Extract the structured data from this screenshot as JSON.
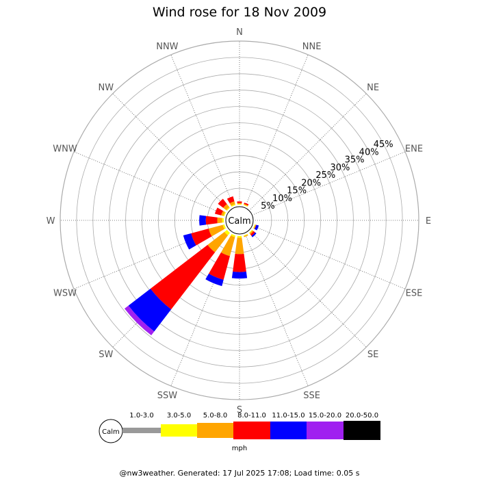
{
  "chart_data": {
    "type": "wind_rose",
    "title": "Wind rose for 18 Nov 2009",
    "unit": "mph",
    "calm_label": "Calm",
    "directions": [
      "N",
      "NNE",
      "NE",
      "ENE",
      "E",
      "ESE",
      "SE",
      "SSE",
      "S",
      "SSW",
      "SW",
      "WSW",
      "W",
      "WNW",
      "NW",
      "NNW"
    ],
    "radial_labels": [
      "5%",
      "10%",
      "15%",
      "20%",
      "25%",
      "30%",
      "35%",
      "40%",
      "45%"
    ],
    "radial_max": 50,
    "speed_bins": [
      {
        "label": "1.0-3.0",
        "color": "#999999"
      },
      {
        "label": "3.0-5.0",
        "color": "#ffff00"
      },
      {
        "label": "5.0-8.0",
        "color": "#ffa500"
      },
      {
        "label": "8.0-11.0",
        "color": "#ff0000"
      },
      {
        "label": "11.0-15.0",
        "color": "#0000ff"
      },
      {
        "label": "15.0-20.0",
        "color": "#a020f0"
      },
      {
        "label": "20.0-50.0",
        "color": "#000000"
      }
    ],
    "cumulative_percent": {
      "N": [
        0,
        0.2,
        0.5,
        1.0,
        1.0,
        1.0,
        1.0
      ],
      "NNE": [
        0,
        0.2,
        0.4,
        0.8,
        0.8,
        0.8,
        0.8
      ],
      "NE": [
        0,
        0,
        0,
        0,
        0,
        0,
        0
      ],
      "ENE": [
        0,
        0,
        0,
        0,
        0,
        0,
        0
      ],
      "E": [
        0,
        0,
        0,
        0,
        0,
        0,
        0
      ],
      "ESE": [
        0,
        0.2,
        0.4,
        0.5,
        1.3,
        1.3,
        1.3
      ],
      "SE": [
        0,
        0.2,
        0.6,
        1.2,
        1.7,
        1.7,
        1.7
      ],
      "SSE": [
        0,
        0.2,
        0.5,
        0.5,
        0.5,
        0.5,
        0.5
      ],
      "S": [
        0,
        0.5,
        5.5,
        11.0,
        13.0,
        13.0,
        13.0
      ],
      "SSW": [
        0,
        0.5,
        6.5,
        14.0,
        16.0,
        16.0,
        16.0
      ],
      "SW": [
        0,
        1.0,
        7.5,
        29.5,
        38.0,
        39.5,
        39.5
      ],
      "WSW": [
        0,
        0.5,
        5.0,
        10.5,
        13.0,
        13.0,
        13.0
      ],
      "W": [
        0,
        0.5,
        2.0,
        5.5,
        7.5,
        7.5,
        7.5
      ],
      "WNW": [
        0,
        0.3,
        1.0,
        3.0,
        3.0,
        3.0,
        3.0
      ],
      "NW": [
        0,
        0.3,
        1.5,
        3.5,
        3.5,
        3.5,
        3.5
      ],
      "NNW": [
        0,
        0.3,
        1.2,
        2.8,
        2.8,
        2.8,
        2.8
      ]
    }
  },
  "footer": "@nw3weather. Generated: 17 Jul 2025 17:08; Load time: 0.05 s"
}
